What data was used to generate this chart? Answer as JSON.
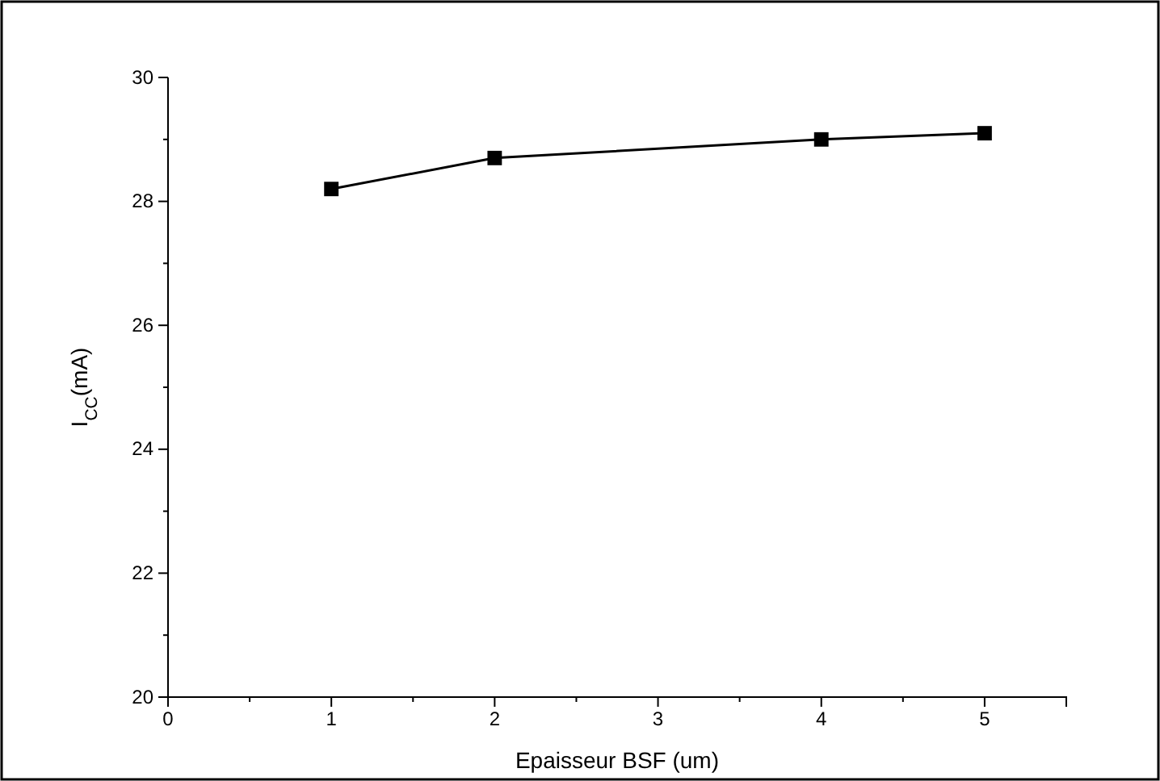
{
  "chart_data": {
    "type": "line",
    "xlabel": "Epaisseur BSF (um)",
    "ylabel": "I$_{CC}$(mA)",
    "x": [
      1,
      2,
      4,
      5
    ],
    "series": [
      {
        "color": "#000000",
        "values": [
          28.2,
          28.7,
          29.0,
          29.1
        ]
      }
    ],
    "marker": "square",
    "line_style": "solid",
    "xlim": [
      0,
      5.5
    ],
    "xticks": [
      0,
      {
        "value": 0.5,
        "label": null
      },
      1,
      {
        "value": 1.5,
        "label": null
      },
      2,
      {
        "value": 2.5,
        "label": null
      },
      3,
      {
        "value": 3.5,
        "label": null
      },
      4,
      {
        "value": 4.5,
        "label": null
      },
      5,
      {
        "value": 5.5,
        "label": null
      }
    ],
    "ylim": [
      20,
      30
    ],
    "yticks": [
      20,
      {
        "value": 21,
        "label": null
      },
      22,
      {
        "value": 23,
        "label": null
      },
      24,
      {
        "value": 25,
        "label": null
      },
      26,
      {
        "value": 27,
        "label": null
      },
      28,
      {
        "value": 29,
        "label": null
      },
      30
    ],
    "grid": false
  }
}
